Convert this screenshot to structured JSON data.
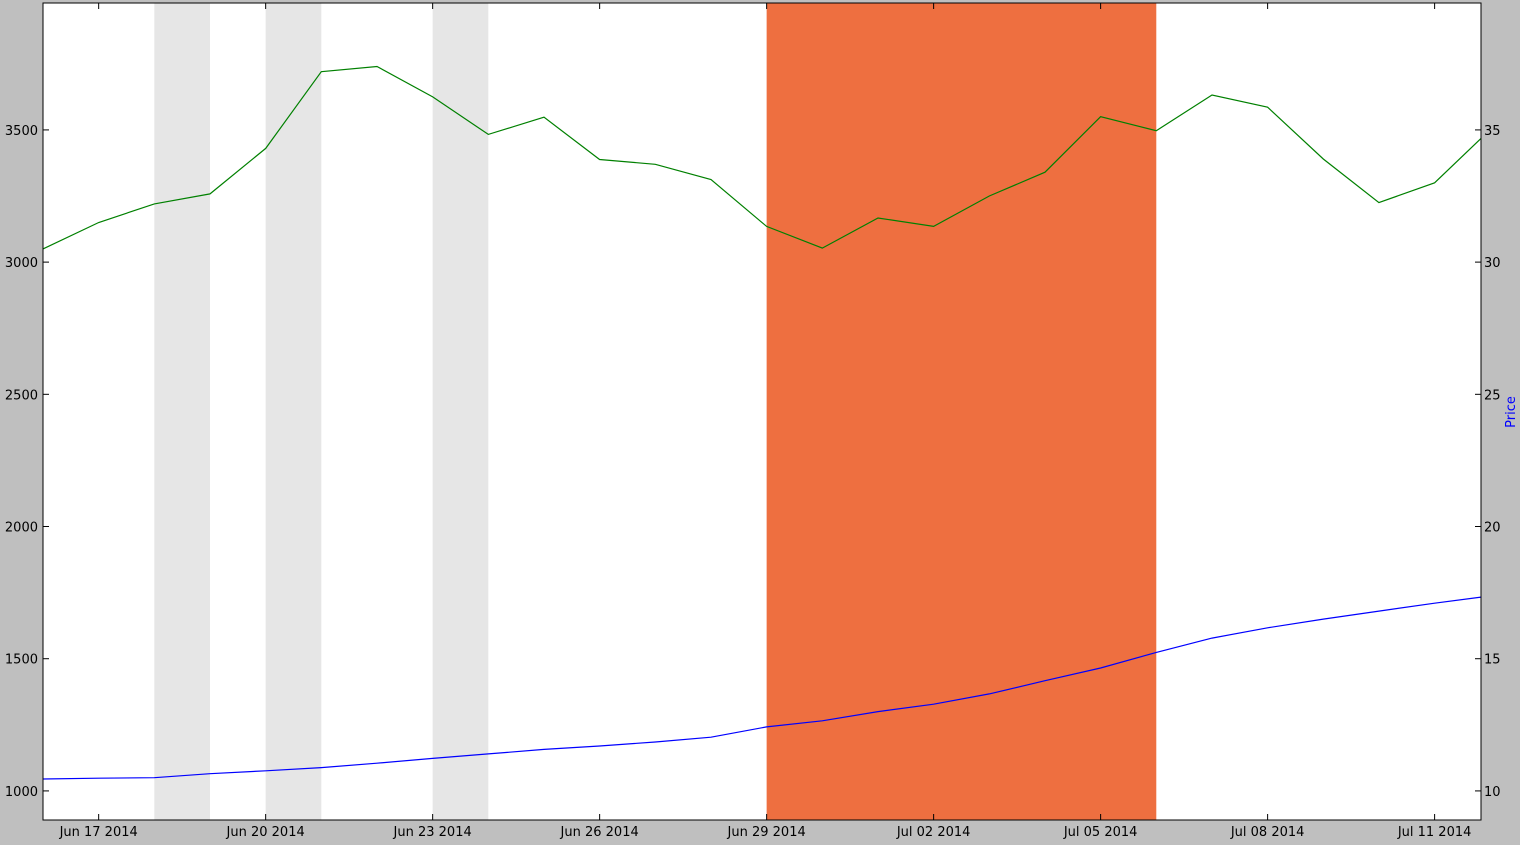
{
  "chart_data": {
    "type": "line",
    "title": "",
    "xlabel": "",
    "ylabel_left": "",
    "ylabel_right": "Price",
    "ylabel_right_color": "#0000ff",
    "x_start": "2014-06-16",
    "x_end": "2014-07-11T20:00",
    "ylim_left": [
      890,
      3980
    ],
    "ylim_right": [
      8.9,
      39.8
    ],
    "x_ticks": [
      {
        "date": "2014-06-17",
        "label": "Jun 17 2014"
      },
      {
        "date": "2014-06-20",
        "label": "Jun 20 2014"
      },
      {
        "date": "2014-06-23",
        "label": "Jun 23 2014"
      },
      {
        "date": "2014-06-26",
        "label": "Jun 26 2014"
      },
      {
        "date": "2014-06-29",
        "label": "Jun 29 2014"
      },
      {
        "date": "2014-07-02",
        "label": "Jul 02 2014"
      },
      {
        "date": "2014-07-05",
        "label": "Jul 05 2014"
      },
      {
        "date": "2014-07-08",
        "label": "Jul 08 2014"
      },
      {
        "date": "2014-07-11",
        "label": "Jul 11 2014"
      }
    ],
    "y_ticks_left": [
      1000,
      1500,
      2000,
      2500,
      3000,
      3500
    ],
    "y_ticks_right": [
      10,
      15,
      20,
      25,
      30,
      35
    ],
    "shaded_regions": [
      {
        "start": "2014-06-18",
        "end": "2014-06-19",
        "color": "#e6e6e6"
      },
      {
        "start": "2014-06-20",
        "end": "2014-06-21",
        "color": "#e6e6e6"
      },
      {
        "start": "2014-06-23",
        "end": "2014-06-24",
        "color": "#e6e6e6"
      },
      {
        "start": "2014-06-29",
        "end": "2014-07-06",
        "color": "#ee6f40"
      }
    ],
    "series": [
      {
        "axis": "left",
        "color": "#008000",
        "points": [
          [
            "2014-06-16",
            3050
          ],
          [
            "2014-06-17",
            3150
          ],
          [
            "2014-06-18",
            3220
          ],
          [
            "2014-06-19",
            3258
          ],
          [
            "2014-06-20",
            3430
          ],
          [
            "2014-06-21",
            3720
          ],
          [
            "2014-06-22",
            3740
          ],
          [
            "2014-06-23",
            3625
          ],
          [
            "2014-06-24",
            3483
          ],
          [
            "2014-06-25",
            3548
          ],
          [
            "2014-06-26",
            3388
          ],
          [
            "2014-06-27",
            3370
          ],
          [
            "2014-06-28",
            3312
          ],
          [
            "2014-06-29",
            3135
          ],
          [
            "2014-06-30",
            3053
          ],
          [
            "2014-07-01",
            3167
          ],
          [
            "2014-07-02",
            3135
          ],
          [
            "2014-07-03",
            3250
          ],
          [
            "2014-07-04",
            3340
          ],
          [
            "2014-07-05",
            3550
          ],
          [
            "2014-07-06",
            3497
          ],
          [
            "2014-07-07",
            3632
          ],
          [
            "2014-07-08",
            3586
          ],
          [
            "2014-07-09",
            3390
          ],
          [
            "2014-07-10",
            3225
          ],
          [
            "2014-07-11",
            3300
          ],
          [
            "2014-07-11T20:00",
            3468
          ]
        ]
      },
      {
        "axis": "right",
        "color": "#0000ff",
        "points": [
          [
            "2014-06-16",
            10.45
          ],
          [
            "2014-06-17",
            10.48
          ],
          [
            "2014-06-18",
            10.5
          ],
          [
            "2014-06-19",
            10.65
          ],
          [
            "2014-06-20",
            10.76
          ],
          [
            "2014-06-21",
            10.88
          ],
          [
            "2014-06-22",
            11.05
          ],
          [
            "2014-06-23",
            11.23
          ],
          [
            "2014-06-24",
            11.4
          ],
          [
            "2014-06-25",
            11.57
          ],
          [
            "2014-06-26",
            11.7
          ],
          [
            "2014-06-27",
            11.85
          ],
          [
            "2014-06-28",
            12.03
          ],
          [
            "2014-06-29",
            12.42
          ],
          [
            "2014-06-30",
            12.65
          ],
          [
            "2014-07-01",
            13.0
          ],
          [
            "2014-07-02",
            13.28
          ],
          [
            "2014-07-03",
            13.67
          ],
          [
            "2014-07-04",
            14.17
          ],
          [
            "2014-07-05",
            14.65
          ],
          [
            "2014-07-06",
            15.24
          ],
          [
            "2014-07-07",
            15.78
          ],
          [
            "2014-07-08",
            16.17
          ],
          [
            "2014-07-09",
            16.5
          ],
          [
            "2014-07-10",
            16.8
          ],
          [
            "2014-07-11",
            17.1
          ],
          [
            "2014-07-11T20:00",
            17.33
          ]
        ]
      }
    ]
  }
}
